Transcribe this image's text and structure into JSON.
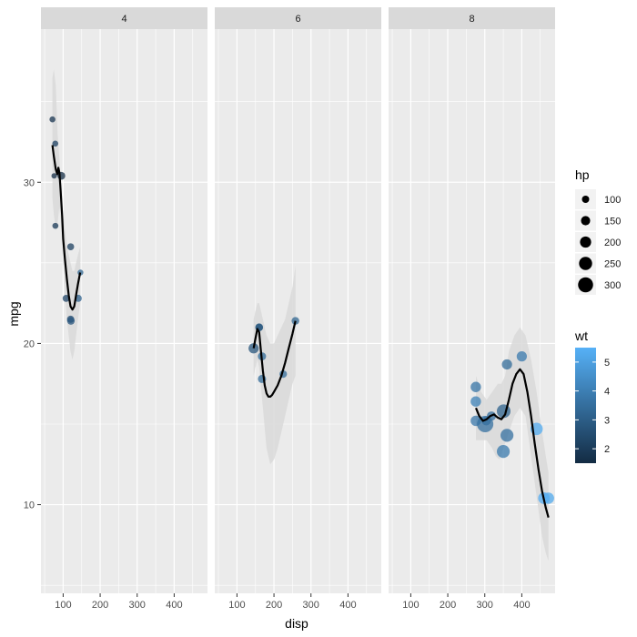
{
  "chart_data": {
    "type": "scatter",
    "xlabel": "disp",
    "ylabel": "mpg",
    "facet_var": "cyl",
    "xlim": [
      40,
      490
    ],
    "ylim": [
      4.5,
      39.5
    ],
    "x_ticks": [
      100,
      200,
      300,
      400
    ],
    "y_ticks": [
      10,
      20,
      30
    ],
    "grid": true,
    "legend_position": "right",
    "size_legend": {
      "title": "hp",
      "labels": [
        "100",
        "150",
        "200",
        "250",
        "300"
      ],
      "values": [
        100,
        150,
        200,
        250,
        300
      ]
    },
    "color_legend": {
      "title": "wt",
      "labels": [
        "2",
        "3",
        "4",
        "5"
      ],
      "values": [
        2,
        3,
        4,
        5
      ],
      "range": [
        1.5,
        5.5
      ],
      "low_color": "#132B43",
      "high_color": "#56B1F7"
    },
    "colors": {
      "smooth_line": "#000000",
      "ribbon": "#d9d9d9",
      "panel_background": "#ebebeb",
      "strip_background": "#d9d9d9"
    },
    "facets": [
      {
        "label": "4",
        "points": [
          {
            "disp": 108.0,
            "mpg": 22.8,
            "hp": 93,
            "wt": 2.32
          },
          {
            "disp": 146.7,
            "mpg": 24.4,
            "hp": 62,
            "wt": 3.19
          },
          {
            "disp": 140.8,
            "mpg": 22.8,
            "hp": 95,
            "wt": 3.15
          },
          {
            "disp": 78.7,
            "mpg": 32.4,
            "hp": 66,
            "wt": 2.2
          },
          {
            "disp": 75.7,
            "mpg": 30.4,
            "hp": 52,
            "wt": 1.62
          },
          {
            "disp": 71.1,
            "mpg": 33.9,
            "hp": 65,
            "wt": 1.84
          },
          {
            "disp": 120.1,
            "mpg": 21.5,
            "hp": 97,
            "wt": 2.47
          },
          {
            "disp": 79.0,
            "mpg": 27.3,
            "hp": 66,
            "wt": 1.94
          },
          {
            "disp": 120.3,
            "mpg": 26.0,
            "hp": 91,
            "wt": 2.14
          },
          {
            "disp": 95.1,
            "mpg": 30.4,
            "hp": 113,
            "wt": 1.51
          },
          {
            "disp": 121.0,
            "mpg": 21.4,
            "hp": 109,
            "wt": 2.78
          }
        ],
        "smooth": [
          [
            71,
            32.3
          ],
          [
            75,
            31.6
          ],
          [
            80,
            30.8
          ],
          [
            84,
            30.5
          ],
          [
            87,
            30.9
          ],
          [
            90,
            30.6
          ],
          [
            93,
            29.5
          ],
          [
            97,
            28.0
          ],
          [
            100,
            26.5
          ],
          [
            105,
            25.2
          ],
          [
            110,
            24.0
          ],
          [
            115,
            23.0
          ],
          [
            120,
            22.3
          ],
          [
            125,
            22.1
          ],
          [
            130,
            22.3
          ],
          [
            135,
            23.0
          ],
          [
            140,
            23.7
          ],
          [
            146,
            24.4
          ]
        ],
        "ribbon_upper": [
          [
            71,
            36.5
          ],
          [
            75,
            37.0
          ],
          [
            80,
            36.0
          ],
          [
            85,
            33.0
          ],
          [
            90,
            31.5
          ],
          [
            95,
            29.5
          ],
          [
            100,
            28.0
          ],
          [
            105,
            27.0
          ],
          [
            110,
            26.0
          ],
          [
            115,
            25.5
          ],
          [
            120,
            25.0
          ],
          [
            125,
            24.5
          ],
          [
            130,
            24.5
          ],
          [
            135,
            25.0
          ],
          [
            140,
            25.5
          ],
          [
            146,
            26.0
          ]
        ],
        "ribbon_lower": [
          [
            71,
            29.0
          ],
          [
            75,
            28.0
          ],
          [
            80,
            27.0
          ],
          [
            85,
            27.5
          ],
          [
            90,
            28.5
          ],
          [
            95,
            27.0
          ],
          [
            100,
            25.0
          ],
          [
            105,
            23.0
          ],
          [
            110,
            21.5
          ],
          [
            115,
            20.5
          ],
          [
            120,
            19.5
          ],
          [
            125,
            19.0
          ],
          [
            130,
            19.5
          ],
          [
            135,
            20.5
          ],
          [
            140,
            21.5
          ],
          [
            146,
            22.5
          ]
        ]
      },
      {
        "label": "6",
        "points": [
          {
            "disp": 160.0,
            "mpg": 21.0,
            "hp": 110,
            "wt": 2.62
          },
          {
            "disp": 160.0,
            "mpg": 21.0,
            "hp": 110,
            "wt": 2.88
          },
          {
            "disp": 258.0,
            "mpg": 21.4,
            "hp": 110,
            "wt": 3.22
          },
          {
            "disp": 225.0,
            "mpg": 18.1,
            "hp": 105,
            "wt": 3.46
          },
          {
            "disp": 167.6,
            "mpg": 19.2,
            "hp": 123,
            "wt": 3.44
          },
          {
            "disp": 167.6,
            "mpg": 17.8,
            "hp": 123,
            "wt": 3.44
          },
          {
            "disp": 145.0,
            "mpg": 19.7,
            "hp": 175,
            "wt": 2.77
          }
        ],
        "smooth": [
          [
            145,
            19.7
          ],
          [
            150,
            20.3
          ],
          [
            155,
            20.9
          ],
          [
            160,
            20.7
          ],
          [
            165,
            19.5
          ],
          [
            170,
            18.3
          ],
          [
            175,
            17.4
          ],
          [
            180,
            16.9
          ],
          [
            185,
            16.7
          ],
          [
            190,
            16.7
          ],
          [
            195,
            16.8
          ],
          [
            200,
            17.0
          ],
          [
            210,
            17.4
          ],
          [
            220,
            18.0
          ],
          [
            230,
            18.8
          ],
          [
            240,
            19.7
          ],
          [
            250,
            20.6
          ],
          [
            258,
            21.4
          ]
        ],
        "ribbon_upper": [
          [
            145,
            21.5
          ],
          [
            150,
            22.0
          ],
          [
            155,
            22.5
          ],
          [
            160,
            22.5
          ],
          [
            170,
            21.5
          ],
          [
            180,
            20.5
          ],
          [
            190,
            20.0
          ],
          [
            200,
            20.0
          ],
          [
            210,
            20.5
          ],
          [
            220,
            21.0
          ],
          [
            230,
            21.5
          ],
          [
            240,
            22.5
          ],
          [
            250,
            23.5
          ],
          [
            258,
            24.8
          ]
        ],
        "ribbon_lower": [
          [
            145,
            18.0
          ],
          [
            150,
            18.5
          ],
          [
            155,
            19.0
          ],
          [
            160,
            18.5
          ],
          [
            170,
            16.0
          ],
          [
            180,
            13.5
          ],
          [
            190,
            12.5
          ],
          [
            200,
            12.8
          ],
          [
            210,
            13.5
          ],
          [
            220,
            14.5
          ],
          [
            230,
            15.5
          ],
          [
            240,
            16.5
          ],
          [
            250,
            17.5
          ],
          [
            258,
            18.0
          ]
        ]
      },
      {
        "label": "8",
        "points": [
          {
            "disp": 360.0,
            "mpg": 18.7,
            "hp": 175,
            "wt": 3.44
          },
          {
            "disp": 360.0,
            "mpg": 14.3,
            "hp": 245,
            "wt": 3.57
          },
          {
            "disp": 275.8,
            "mpg": 16.4,
            "hp": 180,
            "wt": 4.07
          },
          {
            "disp": 275.8,
            "mpg": 17.3,
            "hp": 180,
            "wt": 3.73
          },
          {
            "disp": 275.8,
            "mpg": 15.2,
            "hp": 180,
            "wt": 3.78
          },
          {
            "disp": 472.0,
            "mpg": 10.4,
            "hp": 205,
            "wt": 5.25
          },
          {
            "disp": 460.0,
            "mpg": 10.4,
            "hp": 215,
            "wt": 5.42
          },
          {
            "disp": 440.0,
            "mpg": 14.7,
            "hp": 230,
            "wt": 5.35
          },
          {
            "disp": 318.0,
            "mpg": 15.5,
            "hp": 150,
            "wt": 3.52
          },
          {
            "disp": 304.0,
            "mpg": 15.2,
            "hp": 150,
            "wt": 3.44
          },
          {
            "disp": 350.0,
            "mpg": 13.3,
            "hp": 245,
            "wt": 3.84
          },
          {
            "disp": 400.0,
            "mpg": 19.2,
            "hp": 175,
            "wt": 3.85
          },
          {
            "disp": 351.0,
            "mpg": 15.8,
            "hp": 264,
            "wt": 3.17
          },
          {
            "disp": 301.0,
            "mpg": 15.0,
            "hp": 335,
            "wt": 3.57
          }
        ],
        "smooth": [
          [
            276,
            16.0
          ],
          [
            285,
            15.5
          ],
          [
            295,
            15.2
          ],
          [
            305,
            15.3
          ],
          [
            315,
            15.5
          ],
          [
            325,
            15.6
          ],
          [
            335,
            15.4
          ],
          [
            345,
            15.3
          ],
          [
            355,
            15.6
          ],
          [
            365,
            16.5
          ],
          [
            375,
            17.5
          ],
          [
            385,
            18.1
          ],
          [
            395,
            18.4
          ],
          [
            405,
            18.1
          ],
          [
            415,
            17.0
          ],
          [
            425,
            15.5
          ],
          [
            435,
            13.8
          ],
          [
            445,
            12.2
          ],
          [
            455,
            10.8
          ],
          [
            465,
            9.8
          ],
          [
            472,
            9.2
          ]
        ],
        "ribbon_upper": [
          [
            276,
            18.0
          ],
          [
            290,
            17.0
          ],
          [
            305,
            16.5
          ],
          [
            320,
            17.0
          ],
          [
            335,
            17.5
          ],
          [
            345,
            17.5
          ],
          [
            355,
            18.0
          ],
          [
            365,
            19.5
          ],
          [
            380,
            20.5
          ],
          [
            395,
            21.0
          ],
          [
            410,
            20.5
          ],
          [
            425,
            19.0
          ],
          [
            440,
            17.0
          ],
          [
            455,
            14.5
          ],
          [
            465,
            13.0
          ],
          [
            472,
            12.0
          ]
        ],
        "ribbon_lower": [
          [
            276,
            14.0
          ],
          [
            290,
            14.0
          ],
          [
            305,
            14.0
          ],
          [
            320,
            13.5
          ],
          [
            330,
            13.0
          ],
          [
            340,
            12.8
          ],
          [
            350,
            13.5
          ],
          [
            365,
            14.5
          ],
          [
            380,
            15.5
          ],
          [
            395,
            16.0
          ],
          [
            410,
            15.5
          ],
          [
            425,
            13.0
          ],
          [
            440,
            10.5
          ],
          [
            455,
            8.0
          ],
          [
            465,
            7.0
          ],
          [
            472,
            6.5
          ]
        ]
      }
    ]
  }
}
